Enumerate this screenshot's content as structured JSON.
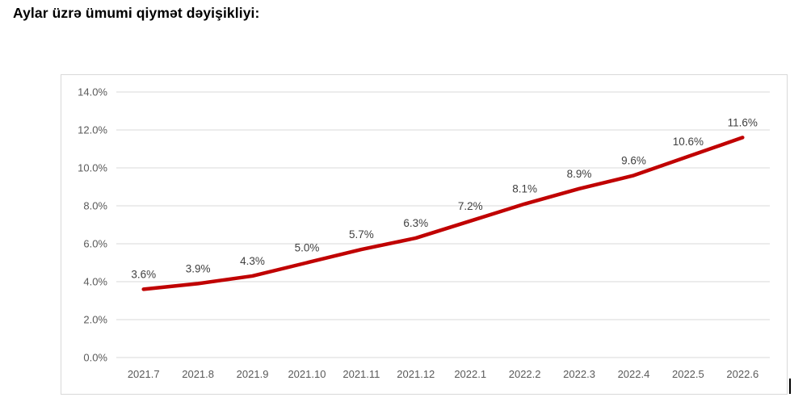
{
  "page": {
    "title": "Aylar üzrə ümumi qiymət dəyişikliyi:"
  },
  "colors": {
    "line": "#c00000",
    "grid": "#d9d9d9",
    "frame_border": "#d9d9d9",
    "axis_text": "#595959",
    "data_label_text": "#404040",
    "title_text": "#000000",
    "background": "#ffffff",
    "cursor": "#000000"
  },
  "chart_data": {
    "type": "line",
    "title": "Aylar üzrə ümumi qiymət dəyişikliyi:",
    "xlabel": "",
    "ylabel": "",
    "categories": [
      "2021.7",
      "2021.8",
      "2021.9",
      "2021.10",
      "2021.11",
      "2021.12",
      "2022.1",
      "2022.2",
      "2022.3",
      "2022.4",
      "2022.5",
      "2022.6"
    ],
    "series": [
      {
        "name": "",
        "values": [
          3.6,
          3.9,
          4.3,
          5.0,
          5.7,
          6.3,
          7.2,
          8.1,
          8.9,
          9.6,
          10.6,
          11.6
        ],
        "data_labels": [
          "3.6%",
          "3.9%",
          "4.3%",
          "5.0%",
          "5.7%",
          "6.3%",
          "7.2%",
          "8.1%",
          "8.9%",
          "9.6%",
          "10.6%",
          "11.6%"
        ]
      }
    ],
    "ylim": [
      0,
      14
    ],
    "ytick_values": [
      0,
      2,
      4,
      6,
      8,
      10,
      12,
      14
    ],
    "ytick_labels": [
      "0.0%",
      "2.0%",
      "4.0%",
      "6.0%",
      "8.0%",
      "10.0%",
      "12.0%",
      "14.0%"
    ],
    "grid": true,
    "legend": false
  }
}
